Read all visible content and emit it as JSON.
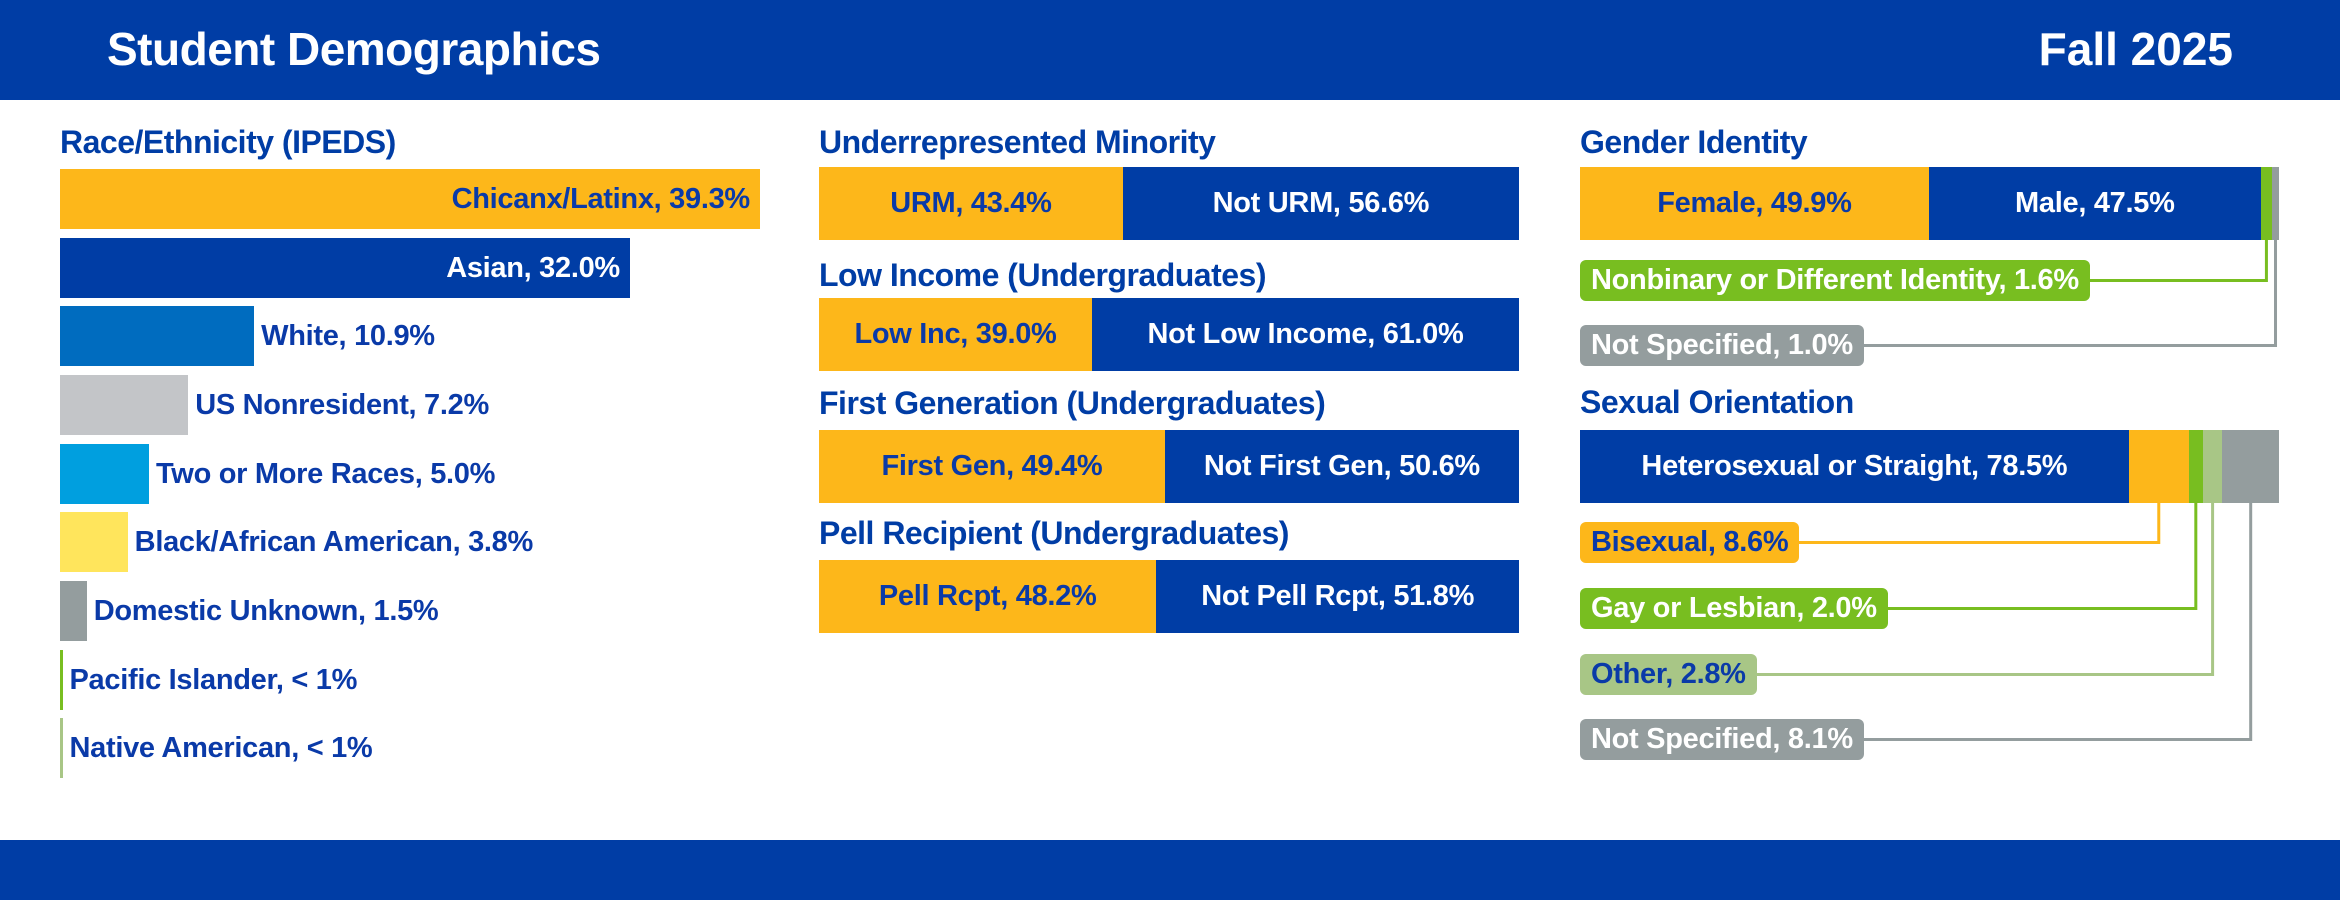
{
  "header": {
    "title": "Student Demographics",
    "term": "Fall 2025"
  },
  "colors": {
    "brand_blue": "#003DA5",
    "gold": "#FDB71A",
    "label_blue": "#0A3AA8",
    "green": "#78BE20",
    "light_green": "#A8C686",
    "gray": "#949D9E"
  },
  "chart_data": [
    {
      "type": "bar",
      "orientation": "horizontal",
      "title": "Race/Ethnicity (IPEDS)",
      "unit": "%",
      "bars": [
        {
          "label": "Chicanx/Latinx, 39.3%",
          "value": 39.3,
          "color": "#FDB71A",
          "text_color": "#0A3AA8",
          "label_inside": true
        },
        {
          "label": "Asian, 32.0%",
          "value": 32.0,
          "color": "#003DA5",
          "text_color": "#FFFFFF",
          "label_inside": true
        },
        {
          "label": "White, 10.9%",
          "value": 10.9,
          "color": "#006CBF",
          "text_color": "#0A3AA8",
          "label_inside": false
        },
        {
          "label": "US Nonresident, 7.2%",
          "value": 7.2,
          "color": "#C3C5C8",
          "text_color": "#0A3AA8",
          "label_inside": false
        },
        {
          "label": "Two or More Races, 5.0%",
          "value": 5.0,
          "color": "#009FDF",
          "text_color": "#0A3AA8",
          "label_inside": false
        },
        {
          "label": "Black/African American, 3.8%",
          "value": 3.8,
          "color": "#FFE55C",
          "text_color": "#0A3AA8",
          "label_inside": false
        },
        {
          "label": "Domestic Unknown, 1.5%",
          "value": 1.5,
          "color": "#949D9E",
          "text_color": "#0A3AA8",
          "label_inside": false
        },
        {
          "label": "Pacific Islander, < 1%",
          "value": null,
          "color": "#78BE20",
          "text_color": "#0A3AA8",
          "label_inside": false
        },
        {
          "label": "Native American, < 1%",
          "value": null,
          "color": "#A8C686",
          "text_color": "#0A3AA8",
          "label_inside": false
        }
      ]
    },
    {
      "type": "bar",
      "stacked": true,
      "title": "Underrepresented Minority",
      "segments": [
        {
          "label": "URM, 43.4%",
          "value": 43.4,
          "color": "#FDB71A",
          "text_color": "#0A3AA8"
        },
        {
          "label": "Not URM, 56.6%",
          "value": 56.6,
          "color": "#003DA5",
          "text_color": "#FFFFFF"
        }
      ]
    },
    {
      "type": "bar",
      "stacked": true,
      "title": "Low Income (Undergraduates)",
      "segments": [
        {
          "label": "Low Inc, 39.0%",
          "value": 39.0,
          "color": "#FDB71A",
          "text_color": "#0A3AA8"
        },
        {
          "label": "Not Low Income, 61.0%",
          "value": 61.0,
          "color": "#003DA5",
          "text_color": "#FFFFFF"
        }
      ]
    },
    {
      "type": "bar",
      "stacked": true,
      "title": "First Generation (Undergraduates)",
      "segments": [
        {
          "label": "First Gen, 49.4%",
          "value": 49.4,
          "color": "#FDB71A",
          "text_color": "#0A3AA8"
        },
        {
          "label": "Not First Gen, 50.6%",
          "value": 50.6,
          "color": "#003DA5",
          "text_color": "#FFFFFF"
        }
      ]
    },
    {
      "type": "bar",
      "stacked": true,
      "title": "Pell Recipient (Undergraduates)",
      "segments": [
        {
          "label": "Pell Rcpt, 48.2%",
          "value": 48.2,
          "color": "#FDB71A",
          "text_color": "#0A3AA8"
        },
        {
          "label": "Not Pell Rcpt, 51.8%",
          "value": 51.8,
          "color": "#003DA5",
          "text_color": "#FFFFFF"
        }
      ]
    },
    {
      "type": "bar",
      "stacked": true,
      "title": "Gender Identity",
      "segments": [
        {
          "label": "Female, 49.9%",
          "value": 49.9,
          "color": "#FDB71A",
          "text_color": "#0A3AA8",
          "callout": false
        },
        {
          "label": "Male, 47.5%",
          "value": 47.5,
          "color": "#003DA5",
          "text_color": "#FFFFFF",
          "callout": false
        },
        {
          "label": "Nonbinary or Different Identity, 1.6%",
          "value": 1.6,
          "color": "#78BE20",
          "text_color": "#FFFFFF",
          "callout": true
        },
        {
          "label": "Not Specified, 1.0%",
          "value": 1.0,
          "color": "#949D9E",
          "text_color": "#FFFFFF",
          "callout": true
        }
      ]
    },
    {
      "type": "bar",
      "stacked": true,
      "title": "Sexual Orientation",
      "segments": [
        {
          "label": "Heterosexual or Straight, 78.5%",
          "value": 78.5,
          "color": "#003DA5",
          "text_color": "#FFFFFF",
          "callout": false
        },
        {
          "label": "Bisexual, 8.6%",
          "value": 8.6,
          "color": "#FDB71A",
          "text_color": "#0A3AA8",
          "callout": true
        },
        {
          "label": "Gay or Lesbian, 2.0%",
          "value": 2.0,
          "color": "#78BE20",
          "text_color": "#FFFFFF",
          "callout": true
        },
        {
          "label": "Other, 2.8%",
          "value": 2.8,
          "color": "#A8C686",
          "text_color": "#0A3AA8",
          "callout": true
        },
        {
          "label": "Not Specified, 8.1%",
          "value": 8.1,
          "color": "#949D9E",
          "text_color": "#FFFFFF",
          "callout": true
        }
      ]
    }
  ]
}
